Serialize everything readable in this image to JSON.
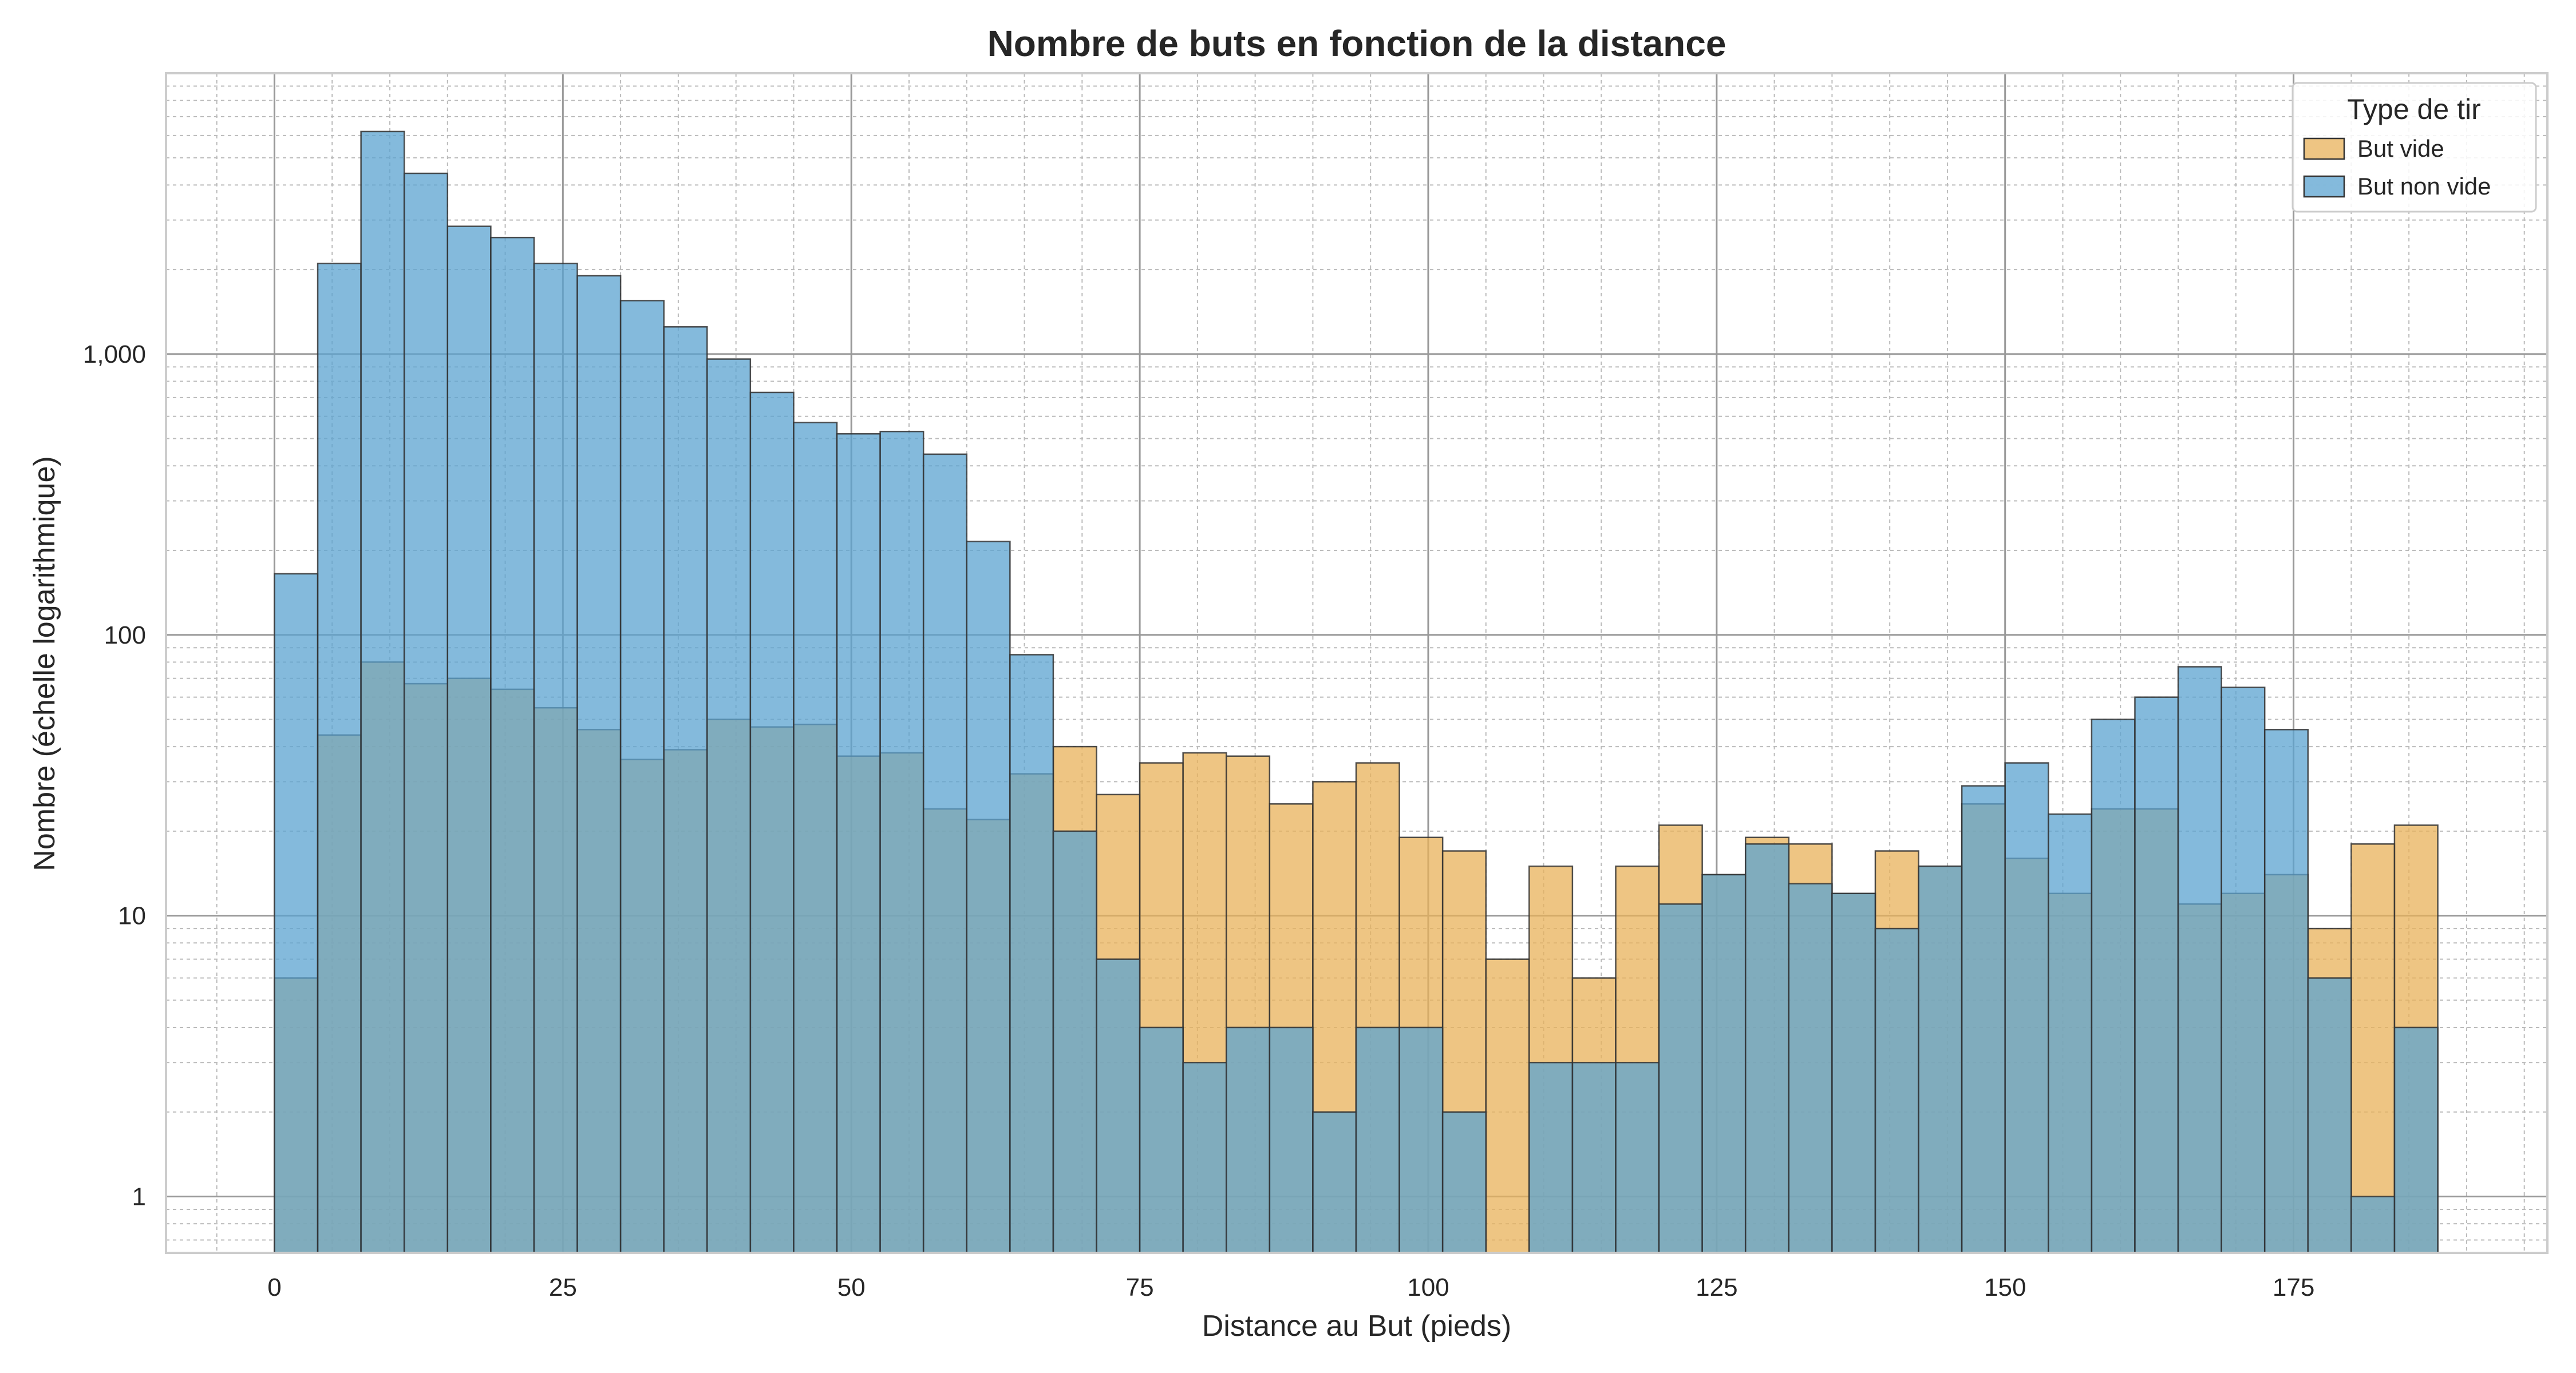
{
  "chart_data": {
    "type": "bar",
    "subtype": "overlapping-histogram",
    "title": "Nombre de buts en fonction de la distance",
    "xlabel": "Distance au But (pieds)",
    "ylabel": "Nombre (échelle logarithmique)",
    "y_scale": "log",
    "xlim": [
      -9.4,
      197
    ],
    "ylim": [
      0.63,
      10000
    ],
    "x_ticks": [
      0,
      25,
      50,
      75,
      100,
      125,
      150,
      175
    ],
    "x_tick_labels": [
      "0",
      "25",
      "50",
      "75",
      "100",
      "125",
      "150",
      "175"
    ],
    "y_ticks": [
      1,
      10,
      100,
      1000
    ],
    "y_tick_labels": [
      "1",
      "10",
      "100",
      "1,000"
    ],
    "grid": true,
    "legend": {
      "title": "Type de tir",
      "position": "top-right",
      "entries": [
        "But vide",
        "But non vide"
      ]
    },
    "colors": {
      "But vide": "#e8b15a",
      "But non vide": "#5ba3d0",
      "overlap": "#75999a"
    },
    "bin_edges": [
      0,
      3.75,
      7.5,
      11.25,
      15,
      18.75,
      22.5,
      26.25,
      30,
      33.75,
      37.5,
      41.25,
      45,
      48.75,
      52.5,
      56.25,
      60,
      63.75,
      67.5,
      71.25,
      75,
      78.75,
      82.5,
      86.25,
      90,
      93.75,
      97.5,
      101.25,
      105,
      108.75,
      112.5,
      116.25,
      120,
      123.75,
      127.5,
      131.25,
      135,
      138.75,
      142.5,
      146.25,
      150,
      153.75,
      157.5,
      161.25,
      165,
      168.75,
      172.5,
      176.25,
      180,
      183.75,
      187.5
    ],
    "series": [
      {
        "name": "But vide",
        "values": [
          6,
          44,
          80,
          67,
          70,
          64,
          55,
          46,
          36,
          39,
          50,
          47,
          48,
          37,
          38,
          24,
          22,
          32,
          40,
          27,
          35,
          38,
          37,
          25,
          30,
          35,
          19,
          17,
          7,
          15,
          6,
          15,
          21,
          14,
          19,
          18,
          12,
          17,
          15,
          25,
          16,
          12,
          24,
          24,
          11,
          12,
          14,
          9,
          18,
          21
        ]
      },
      {
        "name": "But non vide",
        "values": [
          165,
          2100,
          6200,
          4400,
          2850,
          2600,
          2100,
          1900,
          1550,
          1250,
          960,
          730,
          570,
          520,
          530,
          440,
          215,
          85,
          20,
          7,
          4,
          3,
          4,
          4,
          2,
          4,
          4,
          2,
          0,
          3,
          3,
          3,
          11,
          14,
          18,
          13,
          12,
          9,
          15,
          29,
          35,
          23,
          50,
          60,
          77,
          65,
          46,
          6,
          1,
          4
        ]
      }
    ]
  }
}
